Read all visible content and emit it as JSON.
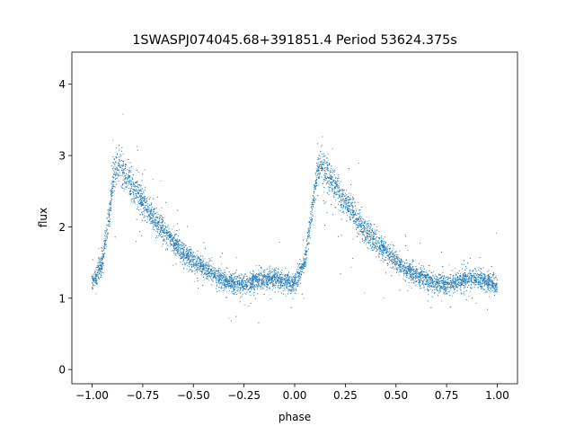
{
  "chart_data": {
    "type": "scatter",
    "title": "1SWASPJ074045.68+391851.4 Period 53624.375s",
    "xlabel": "phase",
    "ylabel": "flux",
    "xlim": [
      -1.1,
      1.1
    ],
    "ylim": [
      -0.2,
      4.45
    ],
    "xticks": [
      -1.0,
      -0.75,
      -0.5,
      -0.25,
      0.0,
      0.25,
      0.5,
      0.75,
      1.0
    ],
    "xtick_labels": [
      "−1.00",
      "−0.75",
      "−0.50",
      "−0.25",
      "0.00",
      "0.25",
      "0.50",
      "0.75",
      "1.00"
    ],
    "yticks": [
      0,
      1,
      2,
      3,
      4
    ],
    "ytick_labels": [
      "0",
      "1",
      "2",
      "3",
      "4"
    ],
    "grid": false,
    "legend": "none",
    "marker_color": "#1f77b4",
    "series": [
      {
        "profile_phase": [
          0.0,
          0.05,
          0.08,
          0.11,
          0.13,
          0.15,
          0.2,
          0.25,
          0.3,
          0.35,
          0.4,
          0.45,
          0.5,
          0.55,
          0.6,
          0.65,
          0.7,
          0.75,
          0.8,
          0.85,
          0.9,
          0.95,
          1.0
        ],
        "profile_flux": [
          1.2,
          1.5,
          2.1,
          2.75,
          2.9,
          2.8,
          2.55,
          2.35,
          2.15,
          1.95,
          1.8,
          1.65,
          1.52,
          1.42,
          1.33,
          1.26,
          1.21,
          1.2,
          1.23,
          1.27,
          1.28,
          1.24,
          1.18
        ]
      }
    ]
  }
}
